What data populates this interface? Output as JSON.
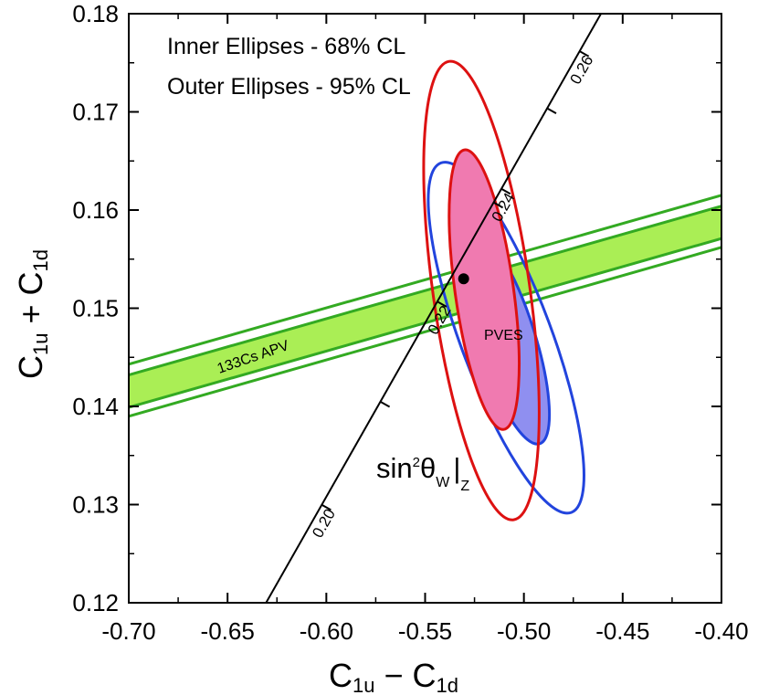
{
  "chart_data": {
    "type": "scatter",
    "title": "",
    "xlabel": {
      "main": "C",
      "sub1": "1u",
      "op": " − C",
      "sub2": "1d"
    },
    "ylabel": {
      "main": "C",
      "sub1": "1u",
      "op": " + C",
      "sub2": "1d"
    },
    "xlim": [
      -0.7,
      -0.4
    ],
    "ylim": [
      0.12,
      0.18
    ],
    "xticks": [
      "-0.70",
      "-0.65",
      "-0.60",
      "-0.55",
      "-0.50",
      "-0.45",
      "-0.40"
    ],
    "yticks": [
      "0.12",
      "0.13",
      "0.14",
      "0.15",
      "0.16",
      "0.17",
      "0.18"
    ],
    "legend": {
      "inner": "Inner Ellipses - 68% CL",
      "outer": "Outer Ellipses - 95% CL",
      "placement": "top-left"
    },
    "apv_band": {
      "label": "133Cs APV",
      "color": "#33aa22",
      "fill": "#aaee55",
      "inner_upper": [
        [
          -0.7,
          0.1432
        ],
        [
          -0.4,
          0.1604
        ]
      ],
      "inner_lower": [
        [
          -0.7,
          0.1399
        ],
        [
          -0.4,
          0.1571
        ]
      ],
      "outer_upper": [
        [
          -0.7,
          0.1443
        ],
        [
          -0.4,
          0.1615
        ]
      ],
      "outer_lower": [
        [
          -0.7,
          0.139
        ],
        [
          -0.4,
          0.1562
        ]
      ]
    },
    "pves": {
      "label": "PVES",
      "color": "#2244dd",
      "fill": "#8f8ff0",
      "center": [
        -0.509,
        0.147
      ],
      "inner_68": {
        "a_x": -0.526,
        "a_y": 0.1578,
        "b_x": -0.492,
        "b_y": 0.1362,
        "half_width": 0.0145
      },
      "outer_95": {
        "a_x": -0.542,
        "a_y": 0.1648,
        "b_x": -0.476,
        "b_y": 0.1292,
        "half_width": 0.023
      }
    },
    "combined": {
      "color": "#dd1111",
      "fill": "#f07ab0",
      "center": [
        -0.5215,
        0.1518
      ],
      "inner_68": {
        "rx": 0.0148,
        "ry": 0.00125
      },
      "outer_95": {
        "rx": 0.0245,
        "ry": 0.00205
      }
    },
    "sm_point": {
      "x": -0.5305,
      "y": 0.153,
      "color": "#000000"
    },
    "sin2_line": {
      "label_main": "sin",
      "label_sup": "2",
      "label_theta": "θ",
      "label_sub": "W",
      "label_bar": "|",
      "label_sub2": "Z",
      "start": [
        -0.6305,
        0.12
      ],
      "end": [
        -0.461,
        0.18
      ],
      "ticks": [
        {
          "value": "0.20",
          "x": -0.6025,
          "y": 0.13,
          "labeled": true
        },
        {
          "value": "0.21",
          "x": -0.5728,
          "y": 0.1405,
          "labeled": false
        },
        {
          "value": "0.22",
          "x": -0.544,
          "y": 0.1507,
          "labeled": true
        },
        {
          "value": "0.23",
          "x": -0.5155,
          "y": 0.1608,
          "labeled": false
        },
        {
          "value": "0.24",
          "x": -0.5117,
          "y": 0.1622,
          "labeled": true
        },
        {
          "value": "0.25",
          "x": -0.4885,
          "y": 0.1704,
          "labeled": false
        },
        {
          "value": "0.26",
          "x": -0.472,
          "y": 0.1762,
          "labeled": true
        }
      ]
    }
  }
}
